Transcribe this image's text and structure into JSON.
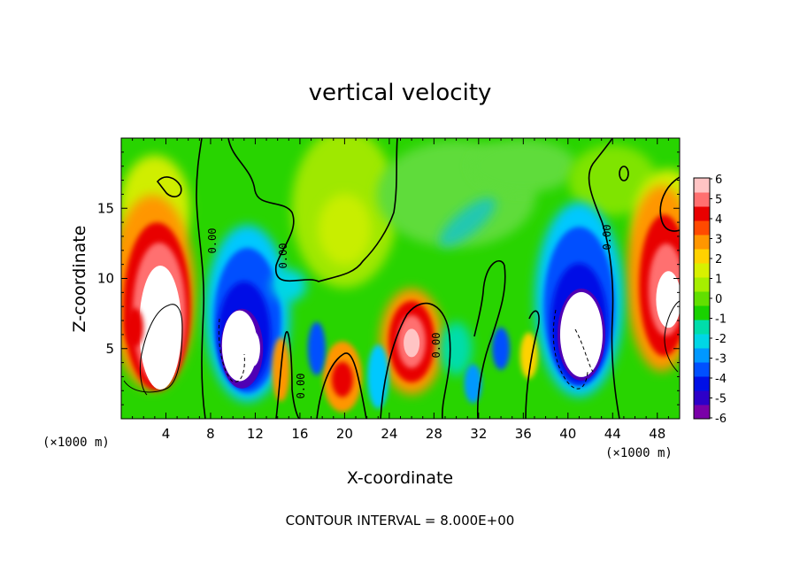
{
  "chart_data": {
    "type": "heatmap",
    "title": "vertical velocity",
    "xlabel": "X-coordinate",
    "ylabel": "Z-coordinate",
    "x_unit_note": "(×1000 m)",
    "y_unit_note": "(×1000 m)",
    "xlim": [
      0,
      50
    ],
    "ylim": [
      0,
      20
    ],
    "x_ticks": [
      4,
      8,
      12,
      16,
      20,
      24,
      28,
      32,
      36,
      40,
      44,
      48
    ],
    "y_ticks": [
      5,
      10,
      15
    ],
    "colorbar": {
      "ticks": [
        6,
        5,
        4,
        3,
        2,
        1,
        0,
        -1,
        -2,
        -3,
        -4,
        -5,
        -6
      ],
      "vmin": -6,
      "vmax": 6,
      "colors": [
        "#7a00a8",
        "#2d00c8",
        "#0010e6",
        "#0050ff",
        "#0098ff",
        "#00d6e6",
        "#00ddaa",
        "#19d200",
        "#62e000",
        "#a6ee00",
        "#d8f000",
        "#ffd200",
        "#ff9600",
        "#ff4a00",
        "#e80000",
        "#ff7070",
        "#ffc4c4"
      ]
    },
    "contour_labels": [
      "0.00",
      "0.00",
      "0.00",
      "0.00",
      "0.00"
    ],
    "features": [
      {
        "kind": "updraft",
        "x": 3.5,
        "z": 8.0,
        "peak": 6
      },
      {
        "kind": "updraft",
        "x": 48.5,
        "z": 9.5,
        "peak": 6
      },
      {
        "kind": "updraft",
        "x": 26.0,
        "z": 5.5,
        "peak": 6
      },
      {
        "kind": "updraft",
        "x": 20.0,
        "z": 3.0,
        "peak": 5
      },
      {
        "kind": "downdraft",
        "x": 11.0,
        "z": 5.5,
        "peak": -6
      },
      {
        "kind": "downdraft",
        "x": 41.0,
        "z": 6.5,
        "peak": -6
      }
    ]
  },
  "contour_interval_text": "CONTOUR INTERVAL = 8.000E+00"
}
